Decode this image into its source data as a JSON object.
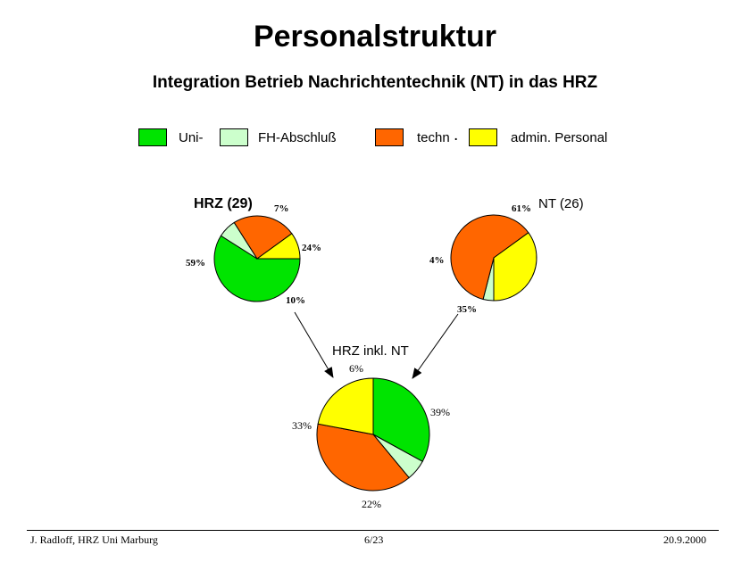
{
  "title": "Personalstruktur",
  "subtitle": "Integration Betrieb Nachrichtentechnik (NT) in das HRZ",
  "legend": [
    {
      "label": "Uni-",
      "color": "#00e400"
    },
    {
      "label": "FH-Abschluß",
      "color": "#ccffcc"
    },
    {
      "label": "techn",
      "color": "#ff6600"
    },
    {
      "label": ".",
      "color": ""
    },
    {
      "label": "admin. Personal",
      "color": "#ffff00"
    }
  ],
  "chart_data": [
    {
      "type": "pie",
      "title": "HRZ (29)",
      "categories": [
        "Uni-",
        "FH-Abschluß",
        "techn",
        "admin. Personal"
      ],
      "values": [
        59,
        7,
        24,
        10
      ],
      "labels": [
        "59%",
        "7%",
        "24%",
        "10%"
      ],
      "colors": [
        "#00e400",
        "#ccffcc",
        "#ff6600",
        "#ffff00"
      ]
    },
    {
      "type": "pie",
      "title": "NT (26)",
      "categories": [
        "FH-Abschluß",
        "techn",
        "admin. Personal"
      ],
      "values": [
        4,
        61,
        35
      ],
      "labels": [
        "4%",
        "61%",
        "35%"
      ],
      "colors": [
        "#ccffcc",
        "#ff6600",
        "#ffff00"
      ]
    },
    {
      "type": "pie",
      "title": "HRZ inkl. NT",
      "categories": [
        "Uni-",
        "FH-Abschluß",
        "techn",
        "admin. Personal"
      ],
      "values": [
        33,
        6,
        39,
        22
      ],
      "labels": [
        "33%",
        "6%",
        "39%",
        "22%"
      ],
      "colors": [
        "#00e400",
        "#ccffcc",
        "#ff6600",
        "#ffff00"
      ]
    }
  ],
  "footer": {
    "left": "J. Radloff, HRZ Uni Marburg",
    "center": "6/23",
    "right": "20.9.2000"
  }
}
